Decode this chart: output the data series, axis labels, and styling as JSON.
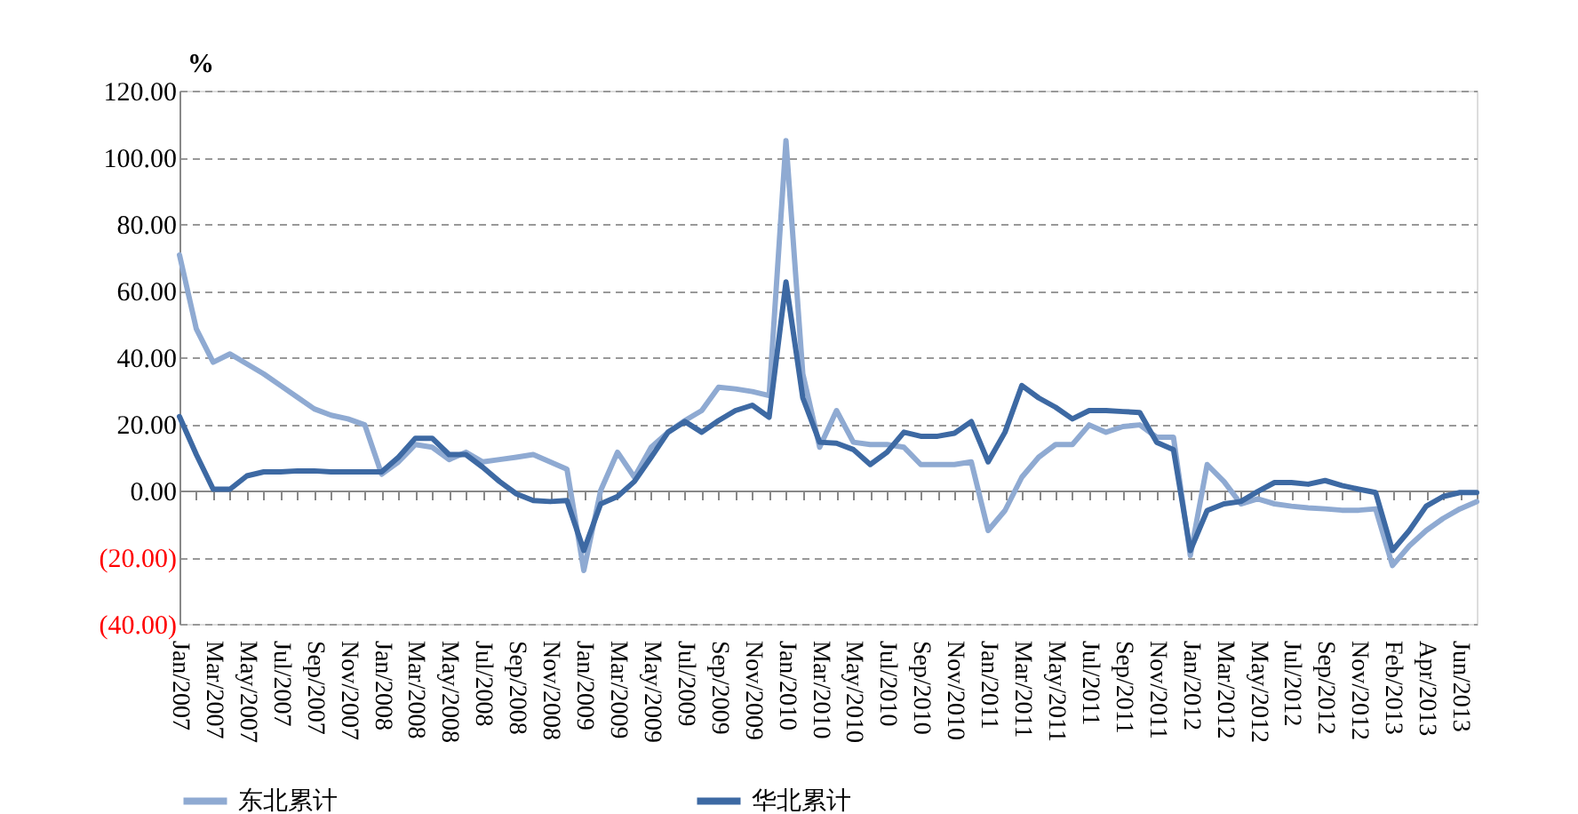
{
  "chart_data": {
    "type": "line",
    "categories": [
      "Jan/2007",
      null,
      "Mar/2007",
      null,
      "May/2007",
      null,
      "Jul/2007",
      null,
      "Sep/2007",
      null,
      "Nov/2007",
      null,
      "Jan/2008",
      null,
      "Mar/2008",
      null,
      "May/2008",
      null,
      "Jul/2008",
      null,
      "Sep/2008",
      null,
      "Nov/2008",
      null,
      "Jan/2009",
      null,
      "Mar/2009",
      null,
      "May/2009",
      null,
      "Jul/2009",
      null,
      "Sep/2009",
      null,
      "Nov/2009",
      null,
      "Jan/2010",
      null,
      "Mar/2010",
      null,
      "May/2010",
      null,
      "Jul/2010",
      null,
      "Sep/2010",
      null,
      "Nov/2010",
      null,
      "Jan/2011",
      null,
      "Mar/2011",
      null,
      "May/2011",
      null,
      "Jul/2011",
      null,
      "Sep/2011",
      null,
      "Nov/2011",
      null,
      "Jan/2012",
      null,
      "Mar/2012",
      null,
      "May/2012",
      null,
      "Jul/2012",
      null,
      "Sep/2012",
      null,
      "Nov/2012",
      null,
      "Feb/2013",
      null,
      "Apr/2013",
      null,
      "Jun/2013",
      null
    ],
    "series": [
      {
        "name": "东北累计",
        "color": "#8faad2",
        "values": [
          70.7,
          48.5,
          38.5,
          41,
          38,
          35,
          31.5,
          28,
          24.5,
          22.6,
          21.5,
          19.7,
          4.9,
          8.6,
          13.8,
          13,
          9.3,
          11.5,
          8.6,
          9.3,
          10,
          10.8,
          8.6,
          6.4,
          -24,
          0,
          11.5,
          4,
          13,
          17.5,
          21,
          24,
          31,
          30.5,
          29.7,
          28.5,
          105,
          35,
          13,
          24,
          14.5,
          13.8,
          13.8,
          13,
          7.8,
          7.8,
          7.8,
          8.6,
          -12,
          -6,
          4,
          10,
          13.8,
          13.8,
          19.7,
          17.5,
          19.2,
          19.7,
          16,
          16,
          -19.5,
          7.8,
          2.7,
          -4,
          -2.5,
          -4,
          -4.7,
          -5.2,
          -5.5,
          -5.9,
          -5.9,
          -5.5,
          -22.5,
          -16.6,
          -12,
          -8.4,
          -5.5,
          -3.3
        ]
      },
      {
        "name": "华北累计",
        "color": "#3d69a3",
        "values": [
          22.2,
          10.8,
          0.4,
          0.4,
          4.4,
          5.6,
          5.6,
          5.9,
          5.9,
          5.6,
          5.6,
          5.6,
          5.6,
          10,
          15.7,
          15.7,
          10.8,
          10.8,
          7,
          2.7,
          -1,
          -3,
          -3.3,
          -3,
          -18,
          -4,
          -1.8,
          2.7,
          10,
          17.5,
          20.7,
          17.5,
          21,
          24,
          25.6,
          22,
          62.6,
          27.8,
          14.5,
          14.2,
          12.3,
          7.8,
          11.5,
          17.5,
          16.3,
          16.3,
          17.2,
          20.7,
          8.6,
          17.5,
          31.5,
          27.8,
          25,
          21.5,
          24,
          24,
          23.7,
          23.4,
          14.5,
          12.3,
          -18,
          -6,
          -4,
          -3.3,
          -0.3,
          2.4,
          2.4,
          1.9,
          3,
          1.5,
          0.4,
          -0.6,
          -18,
          -12,
          -4.7,
          -1.8,
          -0.6,
          -0.6
        ]
      }
    ],
    "ylabel": "%",
    "ylim": [
      -40,
      120
    ],
    "yticks": [
      {
        "value": -40,
        "label": "(40.00)"
      },
      {
        "value": -20,
        "label": "(20.00)"
      },
      {
        "value": 0,
        "label": "0.00"
      },
      {
        "value": 20,
        "label": "20.00"
      },
      {
        "value": 40,
        "label": "40.00"
      },
      {
        "value": 60,
        "label": "60.00"
      },
      {
        "value": 80,
        "label": "80.00"
      },
      {
        "value": 100,
        "label": "100.00"
      },
      {
        "value": 120,
        "label": "120.00"
      }
    ],
    "grid": "y",
    "legend": "bottom",
    "marker": "none",
    "line_style": "solid"
  }
}
